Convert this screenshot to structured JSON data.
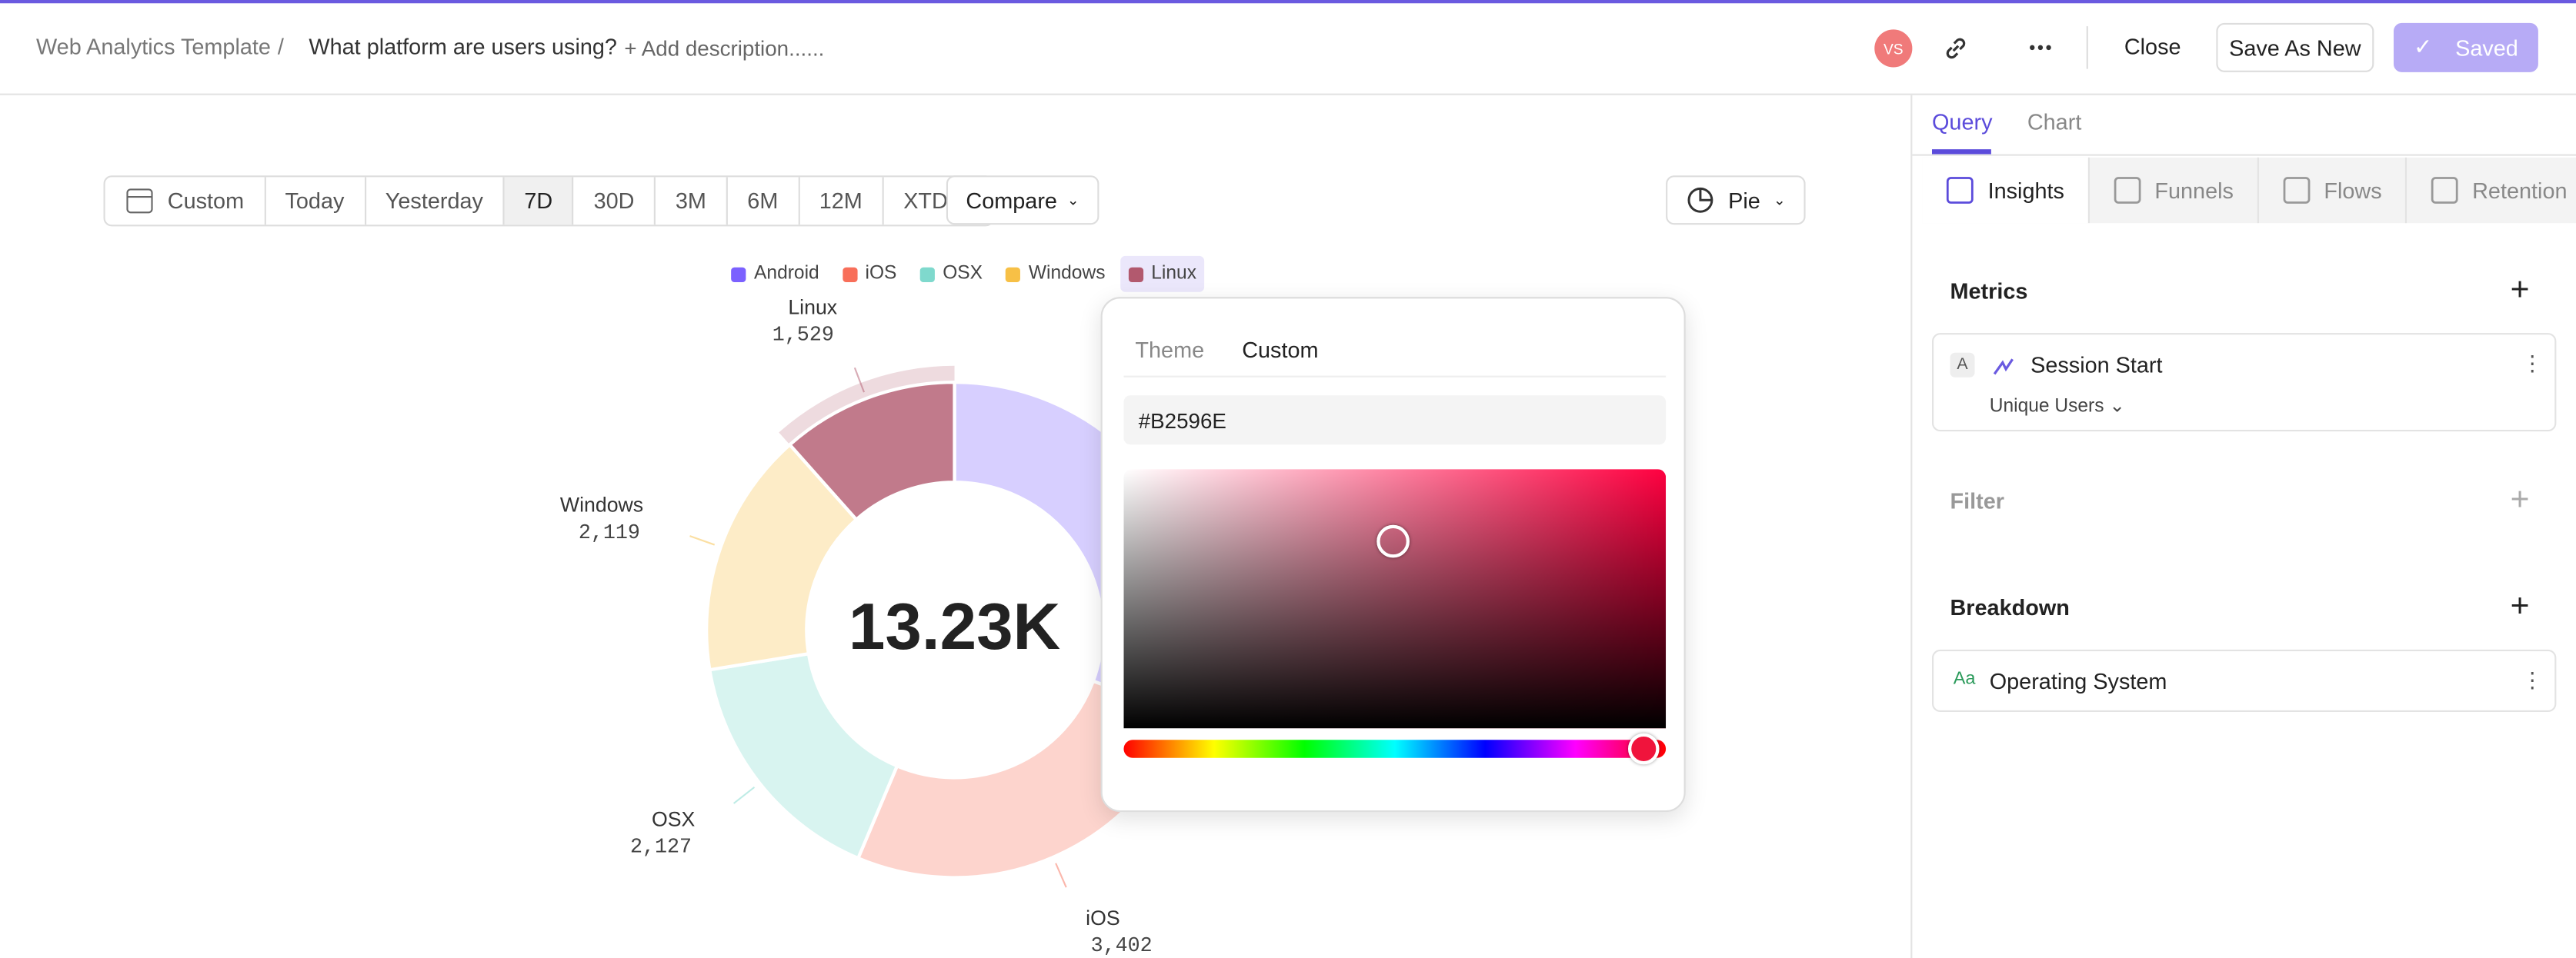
{
  "header": {
    "breadcrumb": "Web Analytics Template",
    "separator": "/",
    "title": "What platform are users using?",
    "description": "+ Add description......",
    "avatar": "VS",
    "close": "Close",
    "save_as_new": "Save As New",
    "saved": "Saved"
  },
  "toolbar": {
    "ranges": [
      "Custom",
      "Today",
      "Yesterday",
      "7D",
      "30D",
      "3M",
      "6M",
      "12M",
      "XTD"
    ],
    "compare": "Compare",
    "chart_type": "Pie"
  },
  "chart_data": {
    "type": "pie",
    "categories": [
      "Android",
      "iOS",
      "OSX",
      "Windows",
      "Linux"
    ],
    "values": [
      4053,
      3402,
      2127,
      2119,
      1529
    ],
    "value_labels": [
      null,
      "3,402",
      "2,127",
      "2,119",
      "1,529"
    ],
    "colors": [
      "#7b61ff",
      "#f86f5a",
      "#7fd9cd",
      "#f7c046",
      "#b2596e"
    ],
    "total_label": "13.23K",
    "legend": true
  },
  "color_picker": {
    "tabs": [
      "Theme",
      "Custom"
    ],
    "hex": "#B2596E"
  },
  "panel": {
    "tabs": [
      "Query",
      "Chart"
    ],
    "analysis": [
      "Insights",
      "Funnels",
      "Flows",
      "Retention"
    ],
    "metrics": "Metrics",
    "metric": {
      "badge": "A",
      "name": "Session Start",
      "measure": "Unique Users"
    },
    "filter": "Filter",
    "breakdown": "Breakdown",
    "breakdown_item": {
      "badge": "Aa",
      "name": "Operating System"
    }
  }
}
